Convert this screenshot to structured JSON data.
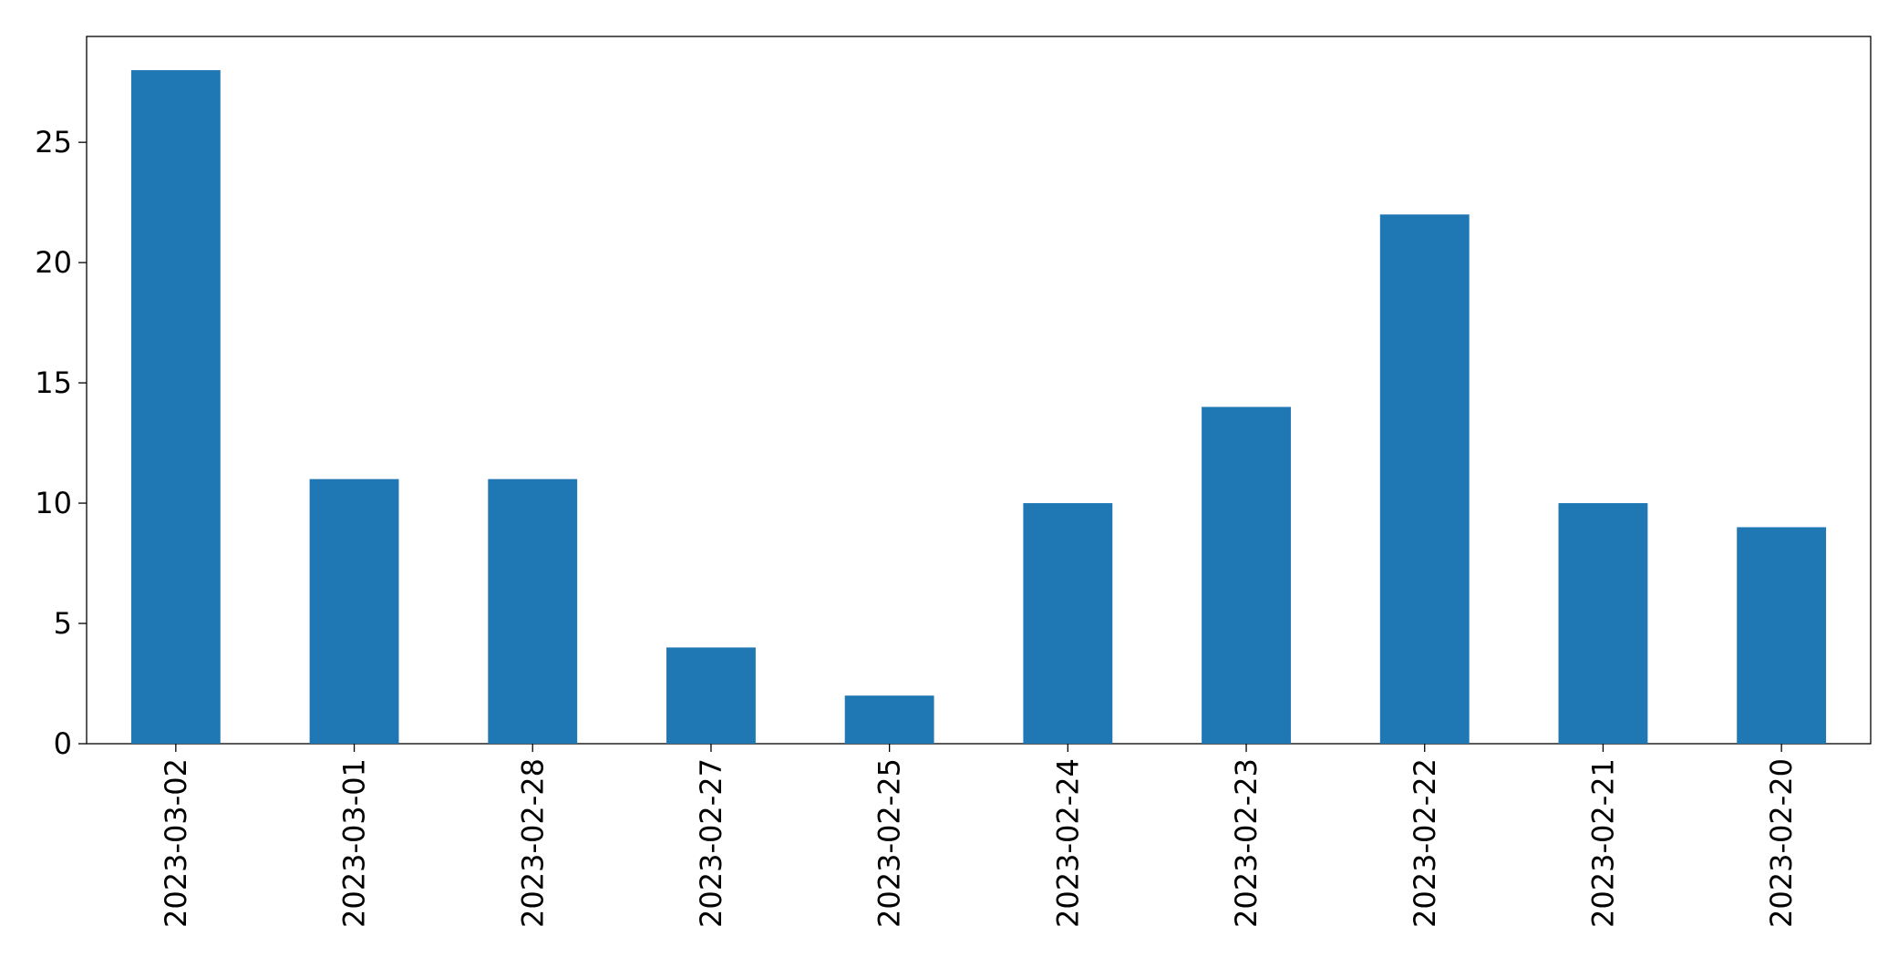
{
  "chart_data": {
    "type": "bar",
    "categories": [
      "2023-03-02",
      "2023-03-01",
      "2023-02-28",
      "2023-02-27",
      "2023-02-25",
      "2023-02-24",
      "2023-02-23",
      "2023-02-22",
      "2023-02-21",
      "2023-02-20"
    ],
    "values": [
      28,
      11,
      11,
      4,
      2,
      10,
      14,
      22,
      10,
      9
    ],
    "color": "#1f77b4",
    "ylim": [
      0,
      29.4
    ],
    "yticks": [
      0,
      5,
      10,
      15,
      20,
      25
    ],
    "grid": false
  }
}
